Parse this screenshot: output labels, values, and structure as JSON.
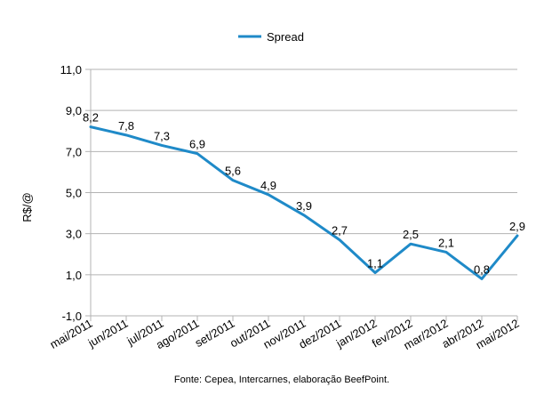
{
  "chart_data": {
    "type": "line",
    "categories": [
      "mai/2011",
      "jun/2011",
      "jul/2011",
      "ago/2011",
      "set/2011",
      "out/2011",
      "nov/2011",
      "dez/2011",
      "jan/2012",
      "fev/2012",
      "mar/2012",
      "abr/2012",
      "mai/2012"
    ],
    "series": [
      {
        "name": "Spread",
        "values": [
          8.2,
          7.8,
          7.3,
          6.9,
          5.6,
          4.9,
          3.9,
          2.7,
          1.1,
          2.5,
          2.1,
          0.8,
          2.9
        ],
        "labels": [
          "8,2",
          "7,8",
          "7,3",
          "6,9",
          "5,6",
          "4,9",
          "3,9",
          "2,7",
          "1,1",
          "2,5",
          "2,1",
          "0,8",
          "2,9"
        ],
        "color": "#1f8ac8"
      }
    ],
    "ylabel": "R$/@",
    "xlabel": "",
    "ylim": [
      -1,
      11
    ],
    "yticks": [
      -1,
      1,
      3,
      5,
      7,
      9,
      11
    ],
    "ytick_labels": [
      "-1,0",
      "1,0",
      "3,0",
      "5,0",
      "7,0",
      "9,0",
      "11,0"
    ],
    "grid": true,
    "legend_position": "top-center",
    "source": "Fonte: Cepea, Intercarnes, elaboração BeefPoint.",
    "gridline_color": "#b3b3b3",
    "axis_color": "#b3b3b3"
  }
}
